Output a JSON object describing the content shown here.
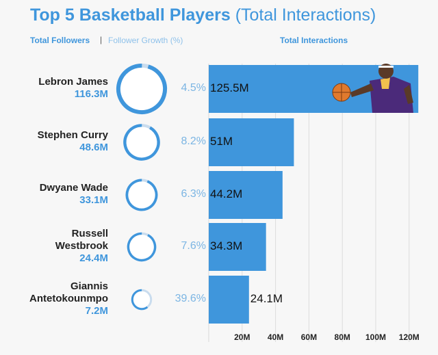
{
  "title_main": "Top 5 Basketball Players",
  "title_sub": "(Total Interactions)",
  "legend": {
    "followers": "Total Followers",
    "separator": "|",
    "growth": "Follower Growth (%)",
    "interactions": "Total Interactions"
  },
  "colors": {
    "accent": "#3f96dc",
    "bar": "#3f96dc",
    "light": "#c9dcee",
    "growth_text": "#7bb5e3"
  },
  "chart_data": {
    "type": "bar",
    "orientation": "horizontal",
    "title": "Top 5 Basketball Players (Total Interactions)",
    "xlabel": "Total Interactions",
    "xlim": [
      0,
      130
    ],
    "xticks": [
      "20M",
      "40M",
      "60M",
      "80M",
      "100M",
      "120M"
    ],
    "grid": true,
    "categories": [
      "Lebron James",
      "Stephen Curry",
      "Dwyane Wade",
      "Russell Westbrook",
      "Giannis Antetokounmpo"
    ],
    "players": [
      {
        "name_lines": [
          "Lebron James"
        ],
        "followers": "116.3M",
        "followers_value": 116.3,
        "growth": "4.5%",
        "growth_value": 4.5,
        "interactions": "125.5M",
        "interactions_value": 125.5
      },
      {
        "name_lines": [
          "Stephen Curry"
        ],
        "followers": "48.6M",
        "followers_value": 48.6,
        "growth": "8.2%",
        "growth_value": 8.2,
        "interactions": "51M",
        "interactions_value": 51
      },
      {
        "name_lines": [
          "Dwyane Wade"
        ],
        "followers": "33.1M",
        "followers_value": 33.1,
        "growth": "6.3%",
        "growth_value": 6.3,
        "interactions": "44.2M",
        "interactions_value": 44.2
      },
      {
        "name_lines": [
          "Russell",
          "Westbrook"
        ],
        "followers": "24.4M",
        "followers_value": 24.4,
        "growth": "7.6%",
        "growth_value": 7.6,
        "interactions": "34.3M",
        "interactions_value": 34.3
      },
      {
        "name_lines": [
          "Giannis",
          "Antetokounmpo"
        ],
        "followers": "7.2M",
        "followers_value": 7.2,
        "growth": "39.6%",
        "growth_value": 39.6,
        "interactions": "24.1M",
        "interactions_value": 24.1
      }
    ]
  }
}
